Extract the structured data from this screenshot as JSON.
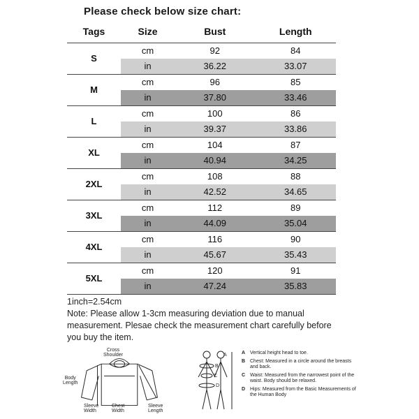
{
  "title": "Please check below size chart:",
  "columns": [
    "Tags",
    "Size",
    "Bust",
    "Length"
  ],
  "colors": {
    "row_white": "#ffffff",
    "row_mid": "#cfcfcf",
    "row_dark": "#9e9e9e",
    "text": "#111111",
    "border": "#444444"
  },
  "table": {
    "col_widths_pct": [
      20,
      20,
      30,
      30
    ],
    "rows": [
      {
        "tag": "S",
        "cm": {
          "bust": "92",
          "length": "84"
        },
        "in": {
          "bust": "36.22",
          "length": "33.07"
        }
      },
      {
        "tag": "M",
        "cm": {
          "bust": "96",
          "length": "85"
        },
        "in": {
          "bust": "37.80",
          "length": "33.46"
        }
      },
      {
        "tag": "L",
        "cm": {
          "bust": "100",
          "length": "86"
        },
        "in": {
          "bust": "39.37",
          "length": "33.86"
        }
      },
      {
        "tag": "XL",
        "cm": {
          "bust": "104",
          "length": "87"
        },
        "in": {
          "bust": "40.94",
          "length": "34.25"
        }
      },
      {
        "tag": "2XL",
        "cm": {
          "bust": "108",
          "length": "88"
        },
        "in": {
          "bust": "42.52",
          "length": "34.65"
        }
      },
      {
        "tag": "3XL",
        "cm": {
          "bust": "112",
          "length": "89"
        },
        "in": {
          "bust": "44.09",
          "length": "35.04"
        }
      },
      {
        "tag": "4XL",
        "cm": {
          "bust": "116",
          "length": "90"
        },
        "in": {
          "bust": "45.67",
          "length": "35.43"
        }
      },
      {
        "tag": "5XL",
        "cm": {
          "bust": "120",
          "length": "91"
        },
        "in": {
          "bust": "47.24",
          "length": "35.83"
        }
      }
    ],
    "unit_labels": {
      "cm": "cm",
      "in": "in"
    }
  },
  "footnote_conv": "1inch=2.54cm",
  "footnote_note": "Note: Please allow 1-3cm measuring deviation due to manual measurement. Plesae check the measurement chart carefully before you buy the item.",
  "garment_labels": {
    "cross_shoulder": "Cross\nShoulder",
    "body_length": "Body\nLength",
    "sleeve_width": "Sleeve\nWidth",
    "chest_width": "Chest\nWidth",
    "sleeve_length": "Sleeve\nLength"
  },
  "legend_items": [
    {
      "lab": "A",
      "txt": "Vertical height head to toe."
    },
    {
      "lab": "B",
      "txt": "Chest: Measured in a circle around the breasts and back."
    },
    {
      "lab": "C",
      "txt": "Waist: Measured from the narrowest point of the waist. Body should be relaxed."
    },
    {
      "lab": "D",
      "txt": "Hips: Measured from the Basic Measurements of the Human Body"
    }
  ]
}
